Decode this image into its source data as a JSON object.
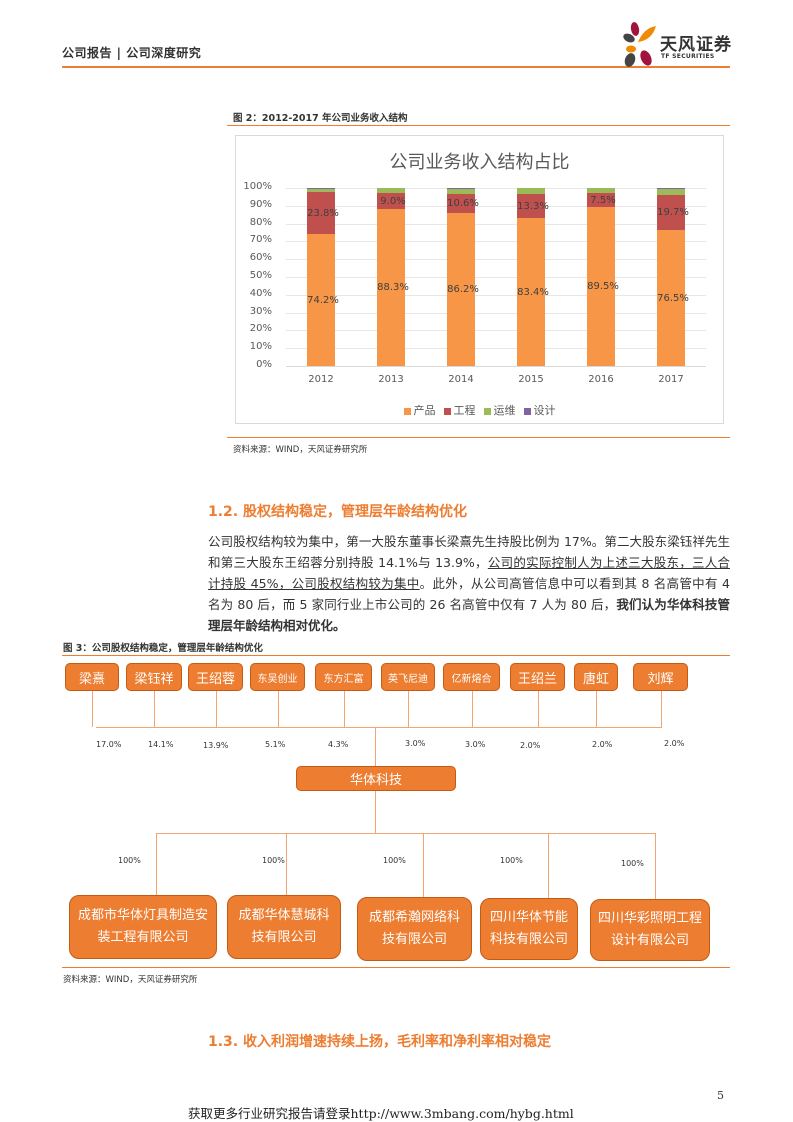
{
  "header": {
    "title": "公司报告 | 公司深度研究",
    "logo_cn": "天风证券",
    "logo_en": "TF SECURITIES"
  },
  "figure2": {
    "caption": "图 2：2012-2017 年公司业务收入结构",
    "source": "资料来源：WIND，天风证券研究所"
  },
  "chart_data": {
    "type": "bar",
    "stacked": true,
    "title": "公司业务收入结构占比",
    "categories": [
      "2012",
      "2013",
      "2014",
      "2015",
      "2016",
      "2017"
    ],
    "series": [
      {
        "name": "产品",
        "color": "#f79646",
        "values": [
          74.2,
          88.3,
          86.2,
          83.4,
          89.5,
          76.5
        ]
      },
      {
        "name": "工程",
        "color": "#c0504d",
        "values": [
          23.8,
          9.0,
          10.6,
          13.3,
          7.5,
          19.7
        ]
      },
      {
        "name": "运维",
        "color": "#9bbb59",
        "values": [
          1.2,
          2.7,
          2.6,
          3.3,
          3.0,
          3.3
        ]
      },
      {
        "name": "设计",
        "color": "#8064a2",
        "values": [
          0.8,
          0.0,
          0.6,
          0.0,
          0.0,
          0.5
        ]
      }
    ],
    "labels": {
      "产品": [
        "74.2%",
        "88.3%",
        "86.2%",
        "83.4%",
        "89.5%",
        "76.5%"
      ],
      "工程": [
        "23.8%",
        "9.0%",
        "10.6%",
        "13.3%",
        "7.5%",
        "19.7%"
      ]
    },
    "yticks": [
      "100%",
      "90%",
      "80%",
      "70%",
      "60%",
      "50%",
      "40%",
      "30%",
      "20%",
      "10%",
      "0%"
    ],
    "ylim": [
      0,
      100
    ],
    "xlabel": "",
    "ylabel": "",
    "grid": true,
    "legend_position": "bottom"
  },
  "section_1_2": {
    "heading": "1.2. 股权结构稳定，管理层年龄结构优化",
    "p1": "公司股权结构较为集中，第一大股东董事长梁熹先生持股比例为 17%。第二大股东梁钰祥先生和第三大股东王绍蓉分别持股 14.1%与 13.9%，",
    "p2_underlined": "公司的实际控制人为上述三大股东，三人合计持股 45%，公司股权结构较为集中",
    "p3": "。此外，从公司高管信息中可以看到其 8 名高管中有 4 名为 80 后，而 5 家同行业上市公司的 26 名高管中仅有 7 人为 80 后，",
    "p4_bold": "我们认为华体科技管理层年龄结构相对优化。"
  },
  "figure3": {
    "caption": "图 3：公司股权结构稳定，管理层年龄结构优化",
    "source": "资料来源：WIND，天风证券研究所",
    "shareholders": [
      {
        "name": "梁熹",
        "pct": "17.0%"
      },
      {
        "name": "梁钰祥",
        "pct": "14.1%"
      },
      {
        "name": "王绍蓉",
        "pct": "13.9%"
      },
      {
        "name": "东吴创业",
        "pct": "5.1%"
      },
      {
        "name": "东方汇富",
        "pct": "4.3%"
      },
      {
        "name": "英飞尼迪",
        "pct": "3.0%"
      },
      {
        "name": "亿新熔合",
        "pct": "3.0%"
      },
      {
        "name": "王绍兰",
        "pct": "2.0%"
      },
      {
        "name": "唐虹",
        "pct": "2.0%"
      },
      {
        "name": "刘辉",
        "pct": "2.0%"
      }
    ],
    "company": "华体科技",
    "subsidiaries": [
      {
        "line1": "成都市华体灯具制造安",
        "line2": "装工程有限公司",
        "pct": "100%"
      },
      {
        "line1": "成都华体慧城科",
        "line2": "技有限公司",
        "pct": "100%"
      },
      {
        "line1": "成都希瀚网络科",
        "line2": "技有限公司",
        "pct": "100%"
      },
      {
        "line1": "四川华体节能",
        "line2": "科技有限公司",
        "pct": "100%"
      },
      {
        "line1": "四川华彩照明工程",
        "line2": "设计有限公司",
        "pct": "100%"
      }
    ]
  },
  "section_1_3": {
    "heading": "1.3. 收入利润增速持续上扬，毛利率和净利率相对稳定"
  },
  "footer": {
    "page_number": "5",
    "link_text": "获取更多行业研究报告请登录http://www.3mbang.com/hybg.html"
  }
}
